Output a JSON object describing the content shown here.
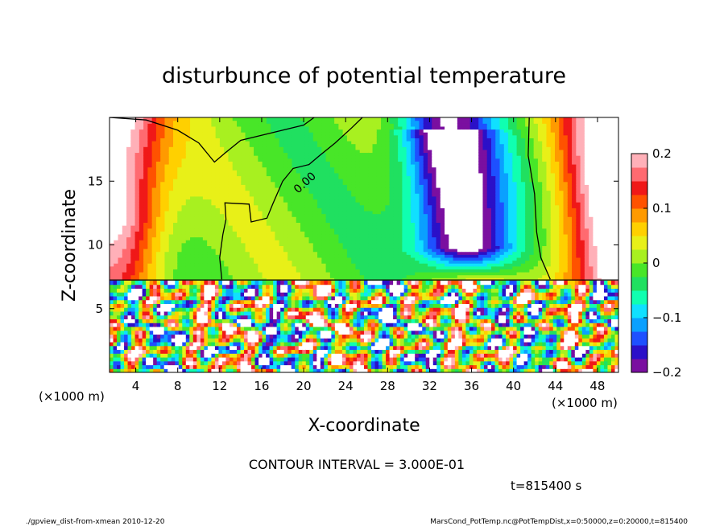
{
  "chart_data": {
    "type": "heatmap",
    "title": "disturbunce of potential temperature",
    "xlabel": "X-coordinate",
    "ylabel": "Z-coordinate",
    "x_unit": "(×1000 m)",
    "y_unit": "(×1000 m)",
    "xlim": [
      1.5,
      50
    ],
    "ylim": [
      0,
      20
    ],
    "x_ticks": [
      "4",
      "8",
      "12",
      "16",
      "20",
      "24",
      "28",
      "32",
      "36",
      "40",
      "44",
      "48"
    ],
    "x_tick_values": [
      4,
      8,
      12,
      16,
      20,
      24,
      28,
      32,
      36,
      40,
      44,
      48
    ],
    "y_ticks": [
      "5",
      "10",
      "15"
    ],
    "y_tick_values": [
      5,
      10,
      15
    ],
    "contour_label": "0.00",
    "colorbar": {
      "ticks": [
        "0.2",
        "0.1",
        "0",
        "−0.1",
        "−0.2"
      ],
      "tick_values": [
        0.2,
        0.1,
        0,
        -0.1,
        -0.2
      ],
      "range": [
        -0.2,
        0.2
      ],
      "colors": [
        "#7a0fa0",
        "#2b10c8",
        "#1e50ff",
        "#0aa0ff",
        "#10e0ff",
        "#10ffb0",
        "#20e060",
        "#48e628",
        "#a8f020",
        "#e8f018",
        "#ffd000",
        "#ff9a00",
        "#ff5200",
        "#f01818",
        "#ff6a70",
        "#ffb0b8"
      ]
    },
    "contour_interval": "CONTOUR INTERVAL = 3.000E-01",
    "time_label": "t=815400 s"
  },
  "footer": {
    "left": "./gpview_dist-from-xmean  2010-12-20",
    "right": "MarsCond_PotTemp.nc@PotTempDist,x=0:50000,z=0:20000,t=815400"
  }
}
